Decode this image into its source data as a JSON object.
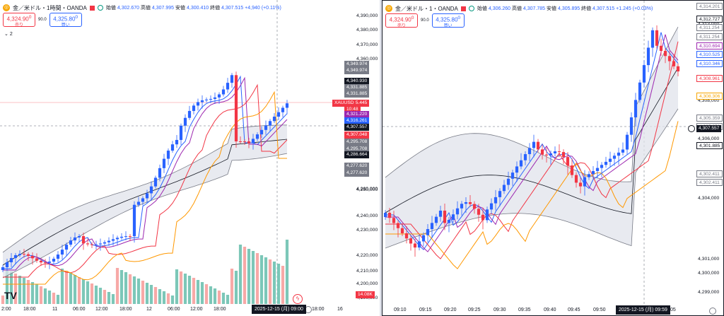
{
  "left": {
    "header": {
      "symbol": "金／米ドル・1時間・OANDA",
      "open_label": "始値",
      "open": "4,302.670",
      "high_label": "高値",
      "high": "4,307.995",
      "low_label": "安値",
      "low": "4,300.410",
      "close_label": "終値",
      "close": "4,307.515",
      "change": "+4,940 (+0.11%)"
    },
    "trade": {
      "sell_price": "4,324.90",
      "sell_sup": "0",
      "sell_label": "売り",
      "spread": "90.0",
      "buy_price": "4,325.80",
      "buy_sup": "0",
      "buy_label": "買い"
    },
    "collapse_label": "2",
    "logo": "TV",
    "price_axis": [
      "4,390,000",
      "4,380,000",
      "4,370,000",
      "4,360,000",
      "4,250,000",
      "4,240,000",
      "4,230,000",
      "4,220,000",
      "4,210,000",
      "4,200,000",
      "4,190,000"
    ],
    "price_axis_mid": "4,260,000",
    "badges": [
      {
        "text": "4,349.974",
        "color": "#787b86"
      },
      {
        "text": "4,349.974",
        "color": "#787b86"
      },
      {
        "text": "4,340.930",
        "color": "#131722"
      },
      {
        "text": "4,331.885",
        "color": "#787b86"
      },
      {
        "text": "4,331.885",
        "color": "#787b86"
      },
      {
        "text": "4,325.445",
        "color": "#f23645"
      },
      {
        "text": "10:48",
        "color": "#f23645"
      },
      {
        "text": "4,321.220",
        "color": "#9c27b0"
      },
      {
        "text": "4,316.261",
        "color": "#2962ff"
      },
      {
        "text": "4,307.557",
        "color": "#131722"
      },
      {
        "text": "4,307.048",
        "color": "#f23645"
      },
      {
        "text": "4,295.708",
        "color": "#787b86"
      },
      {
        "text": "4,295.708",
        "color": "#787b86"
      },
      {
        "text": "4,286.664",
        "color": "#131722"
      },
      {
        "text": "4,277.620",
        "color": "#787b86"
      },
      {
        "text": "4,277.620",
        "color": "#787b86"
      },
      {
        "text": "14.08K",
        "color": "#f23645"
      }
    ],
    "xauusd_label": "XAUUSD",
    "time_axis": [
      "2:00",
      "18:00",
      "11",
      "06:00",
      "12:00",
      "18:00",
      "12",
      "06:00",
      "12:00",
      "18:00",
      "13",
      "18:00",
      "16"
    ],
    "time_highlight": "2025-12-15 (月)  09:00"
  },
  "right": {
    "header": {
      "symbol": "金／米ドル・1・OANDA",
      "open_label": "始値",
      "open": "4,306.260",
      "high_label": "高値",
      "high": "4,307.785",
      "low_label": "安値",
      "low": "4,305.895",
      "close_label": "終値",
      "close": "4,307.515",
      "change": "+1.245 (+0.03%)"
    },
    "trade": {
      "sell_price": "4,324.90",
      "sell_sup": "0",
      "sell_label": "売り",
      "spread": "90.0",
      "buy_price": "4,325.80",
      "buy_sup": "0",
      "buy_label": "買い"
    },
    "price_axis": [
      "4,313,000",
      "4,312,000",
      "4,308,000",
      "4,306,000",
      "4,304,000",
      "4,301,000",
      "4,300,000",
      "4,299,000"
    ],
    "badges_filled": [
      {
        "text": "4,307.557",
        "color": "#131722"
      }
    ],
    "badges_outline": [
      {
        "text": "4,314.201",
        "color": "#787b86"
      },
      {
        "text": "4,312.727",
        "color": "#131722"
      },
      {
        "text": "4,311.254",
        "color": "#787b86"
      },
      {
        "text": "4,311.254",
        "color": "#787b86"
      },
      {
        "text": "4,310.694",
        "color": "#9c27b0"
      },
      {
        "text": "4,310.525",
        "color": "#2962ff"
      },
      {
        "text": "4,310.346",
        "color": "#2962ff"
      },
      {
        "text": "4,308.961",
        "color": "#f23645"
      },
      {
        "text": "4,308.306",
        "color": "#f7a600"
      },
      {
        "text": "4,305.359",
        "color": "#787b86"
      },
      {
        "text": "4,305.359",
        "color": "#787b86"
      },
      {
        "text": "4,301.885",
        "color": "#131722"
      },
      {
        "text": "4,302.411",
        "color": "#787b86"
      },
      {
        "text": "4,302.411",
        "color": "#787b86"
      }
    ],
    "time_axis": [
      "09:10",
      "09:15",
      "09:20",
      "09:25",
      "09:30",
      "09:35",
      "09:40",
      "09:45",
      "09:50",
      "05"
    ],
    "time_highlight": "2025-12-15 (月)  09:59"
  },
  "colors": {
    "up": "#2962ff",
    "down": "#f23645",
    "vol_up": "#7cc7b8",
    "vol_down": "#f7a9a7",
    "band": "#d1d4dc",
    "ema_fast": "#2962ff",
    "ema_mid": "#9c27b0",
    "ema_slow": "#f23645",
    "ema_long": "#ff9800"
  }
}
